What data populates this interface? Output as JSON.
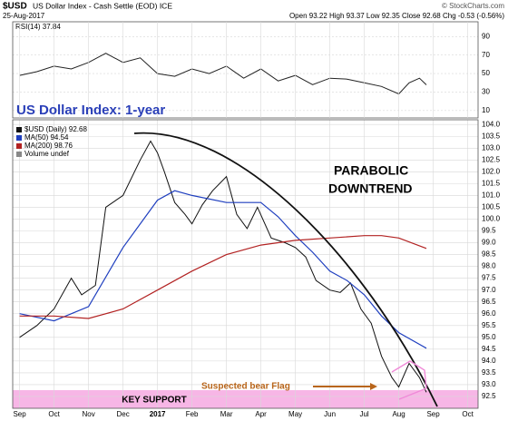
{
  "header": {
    "symbol": "$USD",
    "name": "US Dollar Index - Cash Settle (EOD) ICE",
    "date": "25-Aug-2017",
    "quote": "Open 93.22 High 93.37 Low 92.35 Close 92.68 Chg -0.53 (-0.56%)",
    "credit": "© StockCharts.com"
  },
  "chart_data": [
    {
      "type": "line",
      "legend": "RSI(14) 37.84",
      "xlim": [
        -0.2,
        13.3
      ],
      "ylim": [
        2,
        106
      ],
      "yticks": [
        10,
        30,
        50,
        70,
        90
      ],
      "grid": true,
      "series": [
        {
          "name": "RSI(14)",
          "color": "#222222",
          "x": [
            0,
            0.5,
            1,
            1.5,
            2,
            2.5,
            3,
            3.5,
            4,
            4.5,
            5,
            5.5,
            6,
            6.5,
            7,
            7.5,
            8,
            8.5,
            9,
            9.5,
            10,
            10.5,
            11,
            11.3,
            11.6,
            11.8
          ],
          "values": [
            48,
            52,
            58,
            55,
            62,
            72,
            62,
            67,
            50,
            47,
            55,
            50,
            58,
            45,
            55,
            42,
            48,
            38,
            45,
            44,
            40,
            36,
            28,
            40,
            45,
            37.84
          ]
        }
      ]
    },
    {
      "type": "line",
      "title": "US Dollar Index: 1-year",
      "xlim": [
        -0.2,
        13.3
      ],
      "ylim": [
        92.0,
        104.2
      ],
      "grid": true,
      "yticks": [
        92.5,
        {
          "value": 93,
          "label": "93.0"
        },
        93.5,
        {
          "value": 94,
          "label": "94.0"
        },
        94.5,
        {
          "value": 95,
          "label": "95.0"
        },
        95.5,
        {
          "value": 96,
          "label": "96.0"
        },
        96.5,
        {
          "value": 97,
          "label": "97.0"
        },
        97.5,
        {
          "value": 98,
          "label": "98.0"
        },
        98.5,
        {
          "value": 99,
          "label": "99.0"
        },
        99.5,
        {
          "value": 100,
          "label": "100.0"
        },
        100.5,
        {
          "value": 101,
          "label": "101.0"
        },
        101.5,
        {
          "value": 102,
          "label": "102.0"
        },
        102.5,
        {
          "value": 103,
          "label": "103.0"
        },
        103.5,
        {
          "value": 104,
          "label": "104.0"
        }
      ],
      "xticks": [
        {
          "value": 0,
          "label": "Sep"
        },
        {
          "value": 1,
          "label": "Oct"
        },
        {
          "value": 2,
          "label": "Nov"
        },
        {
          "value": 3,
          "label": "Dec"
        },
        {
          "value": 4,
          "label": "2017"
        },
        {
          "value": 5,
          "label": "Feb"
        },
        {
          "value": 6,
          "label": "Mar"
        },
        {
          "value": 7,
          "label": "Apr"
        },
        {
          "value": 8,
          "label": "May"
        },
        {
          "value": 9,
          "label": "Jun"
        },
        {
          "value": 10,
          "label": "Jul"
        },
        {
          "value": 11,
          "label": "Aug"
        },
        {
          "value": 12,
          "label": "Sep"
        },
        {
          "value": 13,
          "label": "Oct"
        }
      ],
      "series": [
        {
          "name": "$USD (Daily) 92.68",
          "color": "#111111",
          "x": [
            0,
            0.5,
            1,
            1.5,
            1.8,
            2.2,
            2.5,
            3,
            3.5,
            3.8,
            4,
            4.2,
            4.5,
            4.8,
            5,
            5.3,
            5.6,
            6,
            6.3,
            6.6,
            6.9,
            7.3,
            7.7,
            8,
            8.3,
            8.6,
            9,
            9.3,
            9.6,
            9.9,
            10.2,
            10.5,
            10.8,
            11,
            11.3,
            11.6,
            11.8
          ],
          "values": [
            95.0,
            95.5,
            96.2,
            97.5,
            96.8,
            97.2,
            100.5,
            101.0,
            102.5,
            103.3,
            102.8,
            102.0,
            100.7,
            100.2,
            99.8,
            100.6,
            101.2,
            101.8,
            100.2,
            99.6,
            100.5,
            99.2,
            99.0,
            98.8,
            98.4,
            97.4,
            97.0,
            96.9,
            97.3,
            96.2,
            95.6,
            94.2,
            93.3,
            92.9,
            93.9,
            93.3,
            92.68
          ]
        },
        {
          "name": "MA(50) 94.54",
          "color": "#1f3fbf",
          "x": [
            0,
            1,
            2,
            3,
            4,
            4.5,
            5,
            6,
            7,
            7.5,
            8,
            8.5,
            9,
            9.5,
            10,
            10.5,
            11,
            11.8
          ],
          "values": [
            96.0,
            95.7,
            96.3,
            98.8,
            100.8,
            101.2,
            101.0,
            100.7,
            100.7,
            100.1,
            99.3,
            98.6,
            97.8,
            97.4,
            96.8,
            95.9,
            95.2,
            94.54
          ]
        },
        {
          "name": "MA(200) 98.76",
          "color": "#b22222",
          "x": [
            0,
            1,
            2,
            3,
            4,
            5,
            6,
            7,
            8,
            9,
            10,
            10.5,
            11,
            11.8
          ],
          "values": [
            95.9,
            95.9,
            95.8,
            96.2,
            97.0,
            97.8,
            98.5,
            98.9,
            99.1,
            99.2,
            99.3,
            99.3,
            99.2,
            98.76
          ]
        }
      ],
      "legend_extra": "Volume undef",
      "annotations": [
        "PARABOLIC",
        "DOWNTREND",
        "Suspected bear Flag",
        "KEY SUPPORT"
      ]
    }
  ]
}
